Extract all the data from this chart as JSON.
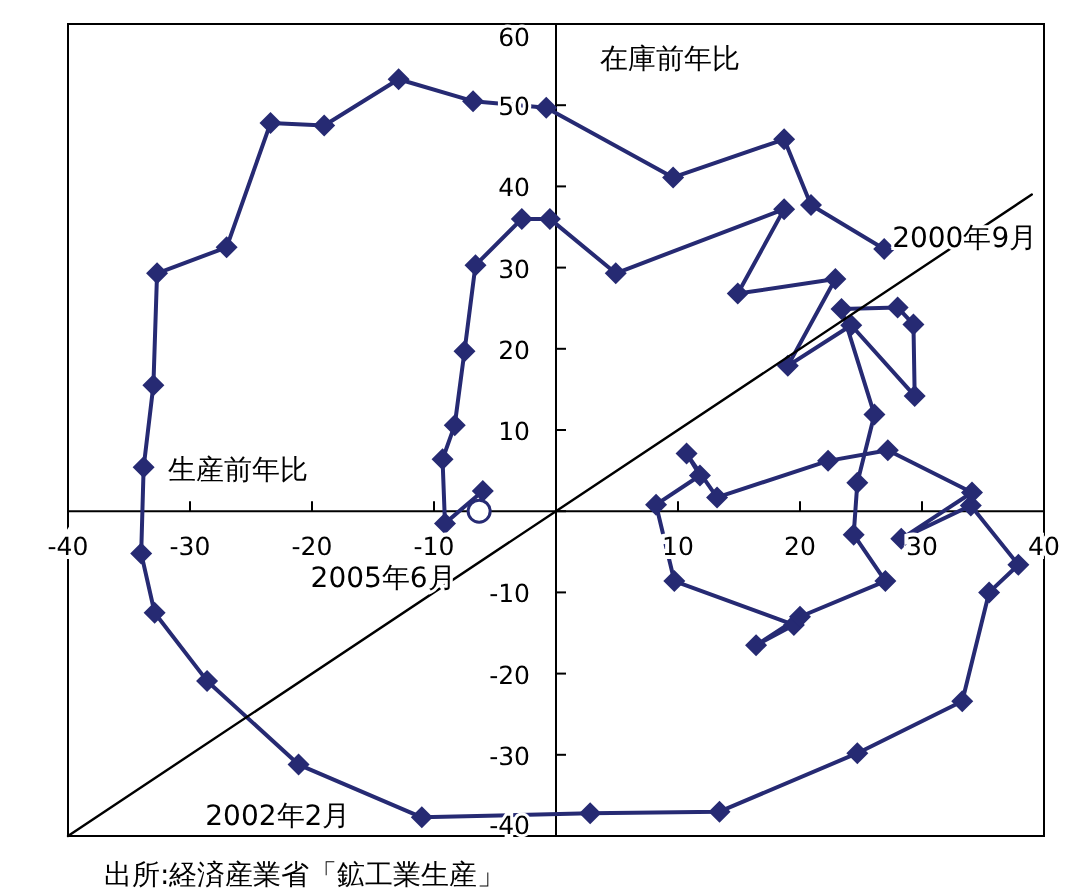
{
  "chart_data": {
    "type": "line",
    "xlabel": "生産前年比",
    "ylabel": "在庫前年比",
    "xlim": [
      -40,
      40
    ],
    "ylim": [
      -40,
      60
    ],
    "xticks": [
      -40,
      -30,
      -20,
      -10,
      {
        "value": 0,
        "label": null
      },
      10,
      20,
      30,
      40
    ],
    "yticks": [
      -40,
      -30,
      -20,
      -10,
      {
        "value": 0,
        "label": null
      },
      10,
      20,
      30,
      40,
      50,
      60
    ],
    "grid": false,
    "marker": "diamond",
    "series": [
      {
        "color": "#262a73",
        "x": [
          26.9,
          20.9,
          18.7,
          9.6,
          -0.8,
          -6.8,
          -12.9,
          -19.0,
          -23.4,
          -27.0,
          -32.7,
          -33.0,
          -33.8,
          -34.0,
          -32.9,
          -28.6,
          -21.1,
          -11.0,
          2.8,
          13.4,
          24.7,
          33.3,
          35.5,
          37.9,
          34.0,
          28.3,
          34.1,
          27.2,
          22.3,
          13.2,
          10.7,
          11.8,
          8.2,
          9.7,
          19.5,
          16.4,
          20.0,
          27.0,
          24.4,
          24.7,
          26.1,
          23.4,
          28.0,
          29.3,
          29.4,
          24.2,
          19.0,
          22.9,
          14.9,
          18.7,
          4.9,
          -0.5,
          -2.8,
          -6.6,
          -7.5,
          -8.3,
          -9.3,
          -9.1,
          -6.0,
          -6.3
        ],
        "values": [
          32.3,
          37.7,
          45.8,
          41.1,
          49.7,
          50.5,
          53.2,
          47.5,
          47.8,
          32.5,
          29.3,
          15.5,
          5.4,
          -5.2,
          -12.5,
          -20.9,
          -31.2,
          -37.7,
          -37.2,
          -37.0,
          -29.8,
          -23.4,
          -10.0,
          -6.6,
          0.7,
          -3.4,
          2.3,
          7.5,
          6.2,
          1.7,
          7.1,
          4.4,
          0.8,
          -8.6,
          -14.0,
          -16.5,
          -13.0,
          -8.6,
          -2.9,
          3.5,
          11.9,
          24.9,
          25.1,
          23.0,
          14.2,
          22.9,
          17.9,
          28.6,
          26.8,
          37.2,
          29.3,
          36.0,
          36.0,
          30.3,
          19.7,
          10.6,
          6.4,
          -1.5,
          2.5,
          0.0
        ]
      },
      {
        "type": "line",
        "color": "#000000",
        "marker": "none",
        "x": [
          -40,
          39
        ],
        "values": [
          -40,
          39
        ]
      },
      {
        "type": "scatter",
        "color": "#ffffff",
        "marker": "circle",
        "x": [
          -6.3
        ],
        "values": [
          0.0
        ]
      }
    ],
    "annotations": [
      {
        "text": "2000年9月",
        "x": 26.9,
        "y": 32.3
      },
      {
        "text": "2005年6月",
        "x": -6.3,
        "y": 0.0
      },
      {
        "text": "2002年2月",
        "x": -11.0,
        "y": -37.7
      },
      "出所:経済産業省「鉱工業生産」"
    ]
  }
}
